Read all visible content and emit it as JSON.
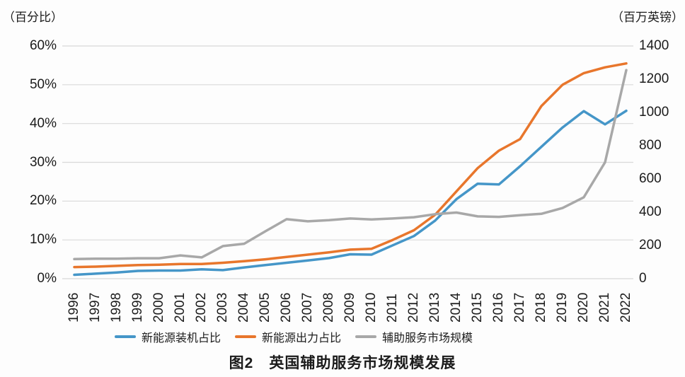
{
  "header": {
    "left_unit": "（百分比）",
    "right_unit": "（百万英镑）"
  },
  "caption": {
    "text": "图2　英国辅助服务市场规模发展"
  },
  "chart_data": {
    "type": "line",
    "title": "图2 英国辅助服务市场规模发展",
    "x": [
      1996,
      1997,
      1998,
      1999,
      2000,
      2001,
      2002,
      2003,
      2004,
      2005,
      2006,
      2007,
      2008,
      2009,
      2010,
      2011,
      2012,
      2013,
      2014,
      2015,
      2016,
      2017,
      2018,
      2019,
      2020,
      2021,
      2022
    ],
    "series": [
      {
        "name": "新能源装机占比",
        "axis": "left",
        "unit": "%",
        "color": "#4596c8",
        "values": [
          1.0,
          1.3,
          1.6,
          2.0,
          2.1,
          2.1,
          2.4,
          2.2,
          2.9,
          3.5,
          4.1,
          4.7,
          5.3,
          6.3,
          6.2,
          8.6,
          11.0,
          15.0,
          20.5,
          24.5,
          24.3,
          29.0,
          34.0,
          39.0,
          43.2,
          39.8,
          43.3
        ]
      },
      {
        "name": "新能源出力占比",
        "axis": "left",
        "unit": "%",
        "color": "#e8762c",
        "values": [
          3.0,
          3.1,
          3.3,
          3.5,
          3.6,
          3.8,
          3.8,
          4.1,
          4.5,
          5.0,
          5.6,
          6.2,
          6.8,
          7.5,
          7.7,
          10.0,
          12.5,
          16.5,
          22.5,
          28.5,
          33.0,
          36.0,
          44.5,
          50.0,
          53.0,
          54.5,
          55.5
        ]
      },
      {
        "name": "辅助服务市场规模",
        "axis": "right",
        "unit": "百万英镑",
        "color": "#a8a8a8",
        "values": [
          118,
          120,
          120,
          123,
          123,
          140,
          128,
          196,
          210,
          285,
          358,
          345,
          352,
          362,
          356,
          362,
          370,
          388,
          398,
          375,
          372,
          382,
          390,
          425,
          490,
          700,
          1255
        ]
      }
    ],
    "left_axis": {
      "label": "（百分比）",
      "min": 0,
      "max": 60,
      "ticks": [
        "60%",
        "50%",
        "40%",
        "30%",
        "20%",
        "10%",
        "0%"
      ]
    },
    "right_axis": {
      "label": "（百万英镑）",
      "min": 0,
      "max": 1400,
      "ticks": [
        "1400",
        "1200",
        "1000",
        "800",
        "600",
        "400",
        "200",
        "0"
      ]
    },
    "grid": true,
    "gridline_color": "#d9d9d9",
    "legend_position": "bottom"
  }
}
